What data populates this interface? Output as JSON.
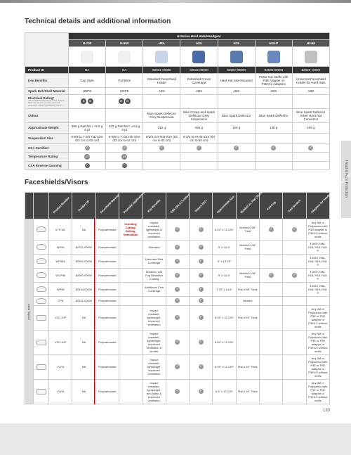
{
  "title": "Technical details and additional information",
  "title2": "Faceshields/Visors",
  "sidetab": "Head & Face Protection",
  "pagenum": "133",
  "t1": {
    "spanhdr": "H-Series Hard Hats/Headgear",
    "cols": [
      "H-700",
      "H-800",
      "H8A",
      "H10",
      "H18",
      "H18-P",
      "H24M"
    ],
    "colcolors": [
      "#f0f0f0",
      "#f0f0f0",
      "#c8d4e8",
      "#4a6ba8",
      "#5878b0",
      "#6a88c0",
      "#c0c0c0"
    ],
    "rows": [
      {
        "lbl": "Product ID",
        "vals": [
          "NA",
          "NA",
          "82501-00000",
          "82516-00000",
          "82502-00000",
          "82505-00000",
          "82520-10000"
        ],
        "dark": true
      },
      {
        "lbl": "Key Benefits",
        "vals": [
          "Cap Style",
          "Full Brim",
          "Standard Faceshield Holder",
          "Extended Crown Coverage",
          "Hard Hat Slot-Mounted",
          "Peltor Ear Muffs with P3E Adapter or P3EV/2 Adapters",
          "Universal Faceshield Holder for Hard Hats"
        ]
      },
      {
        "lbl": "Spark Def./Shell Material",
        "vals": [
          "HDPE",
          "HDPE",
          "ABS",
          "ABS",
          "ABS",
          "ABS",
          "ABS"
        ]
      },
      {
        "lbl": "Electrical Rating*",
        "sub": "(All uncited hard hats are rated class E; NOT intended to provide electrical protection unless specified by name.)",
        "vals": [
          "badge:E G",
          "badge:E G",
          "",
          "",
          "",
          "",
          ""
        ]
      },
      {
        "lbl": "Colour",
        "vals": [
          "",
          "",
          "Blue Spark Deflector Grey Suspension",
          "Blue Crown and Spark Deflector Grey Suspension",
          "Blue Spark Deflector",
          "Blue Spark Deflector",
          "Blue Spark Deflector Silver Hard Hat Connector"
        ]
      },
      {
        "lbl": "Approximate Weight",
        "vals": [
          "366 g Ratchet / +6.5 g 6 pt",
          "403 g Ratchet / +6.5 g 6 pt",
          "212 g",
          "255 g",
          "150 g",
          "130 g",
          "109 g"
        ]
      },
      {
        "lbl": "Suspension Size",
        "vals": [
          "6-5/8 to 7-3/4 Hat Size (53 cm to 62 cm)",
          "6-5/8 to 7-3/4 Hat Size (53 cm to 62 cm)",
          "6-3/4 to 8 Hat Size (54 cm to 64 cm)",
          "6-3/4 to 8 Hat Size (54 cm to 64 cm)",
          "",
          "",
          ""
        ]
      },
      {
        "lbl": "CSA Certified",
        "vals": [
          "chk",
          "chk",
          "chk",
          "chk",
          "chk",
          "chk",
          "chk"
        ]
      },
      {
        "lbl": "Temperature Rating",
        "vals": [
          "badge:LT",
          "badge:LT",
          "",
          "",
          "",
          "",
          ""
        ]
      },
      {
        "lbl": "CSA Reverse Donning",
        "vals": [
          "chkd",
          "chkd",
          "",
          "",
          "",
          "",
          ""
        ]
      }
    ]
  },
  "t2": {
    "rowgroup": "Clear Impact",
    "headers": [
      "Product Number",
      "Product ID",
      "Faceshield Material",
      "Potential Applications",
      "Key Benefits",
      "CSA Z94.3 Certified",
      "Impact Z87+",
      "Approximate Size",
      "Molded vs. Flat (Thickness)",
      "Anti-Fog",
      "Anti-Scratch",
      "Adapters for Headgear and Versa-Flo Systems"
    ],
    "rows": [
      {
        "pn": "V7F-WL",
        "pid": "NA",
        "mat": "Polycarbonate",
        "app": "Grinding, Cutting, Drilling, Demolition",
        "ben": "Impact resistant, lightweight & improved ventilation",
        "csa": "y",
        "z87": "y",
        "size": "8.25\" x 12.125\"",
        "thick": "Molded 0.08\" Thick",
        "af": "y",
        "as": "y",
        "adapt": "Any 3M or Polysonics with P3E adaptor or P3EV/2 without muffs"
      },
      {
        "pn": "WP96",
        "pid": "82701-00000",
        "mat": "Polycarbonate",
        "app": "",
        "ben": "Standard",
        "csa": "y",
        "z87": "y",
        "size": "9\" x 14.5\"",
        "thick": "Molded 0.08\" Thick",
        "af": "",
        "as": "",
        "adapt": "H24M, H8A, H18, H18, H18-P"
      },
      {
        "pn": "WP96X",
        "pid": "82582-00000",
        "mat": "Polycarbonate",
        "app": "",
        "ben": "Extended Side Coverage",
        "csa": "y",
        "z87": "y",
        "size": "9\" x 19.25\"",
        "thick": "",
        "af": "",
        "as": "",
        "adapt": "H24M, H8A, H18, H18, H18-P"
      },
      {
        "pn": "WCP96",
        "pid": "82600-00000",
        "mat": "Polycarbonate",
        "app": "",
        "ben": "Abrasion and Fog Resistant Coating",
        "csa": "y",
        "z87": "y",
        "size": "9\" x 14.5\"",
        "thick": "Molded 0.08\" Thick",
        "af": "y",
        "as": "y",
        "adapt": "H24M, H8A, H18, H18, H18-P"
      },
      {
        "pn": "WP98",
        "pid": "82543-00000",
        "mat": "Polycarbonate",
        "app": "",
        "ben": "Additional Chin Coverage",
        "csa": "y",
        "z87": "y",
        "size": "7.25\" x 14.5\"",
        "thick": "Flat 0.08\" Thick",
        "af": "",
        "as": "",
        "adapt": "H24M, H8A, H18, H18, H18-P"
      },
      {
        "pn": "CP8",
        "pid": "82542-00000",
        "mat": "Polycarbonate",
        "app": "",
        "ben": "",
        "csa": "y",
        "z87": "y",
        "size": "",
        "thick": "Molded",
        "af": "",
        "as": "",
        "adapt": ""
      },
      {
        "pn": "V2C-10P",
        "pid": "NA",
        "mat": "Polycarbonate",
        "app": "",
        "ben": "Impact resistant, lightweight, improved ventilation",
        "csa": "y",
        "z87": "y",
        "size": "8.25\" x 12.125\"",
        "thick": "Flat 0.04\" Thick",
        "af": "",
        "as": "",
        "adapt": "Any 3M or Polysonics with P3E or P5E adaptor or P3EV/2 without muffs"
      },
      {
        "pn": "V3C-10P",
        "pid": "NA",
        "mat": "Polycarbonate",
        "app": "",
        "ben": "Impact resistant, lightweight, improved ventilation & shorter",
        "csa": "y",
        "z87": "y",
        "size": "6.05\" x 12.125\"",
        "thick": "",
        "af": "",
        "as": "",
        "adapt": "Any 3M or Polysonics with P3E or P5E adaptor or P3EV/2 without muffs"
      },
      {
        "pn": "V2C6",
        "pid": "NA",
        "mat": "Polycarbonate",
        "app": "",
        "ben": "Impact resistant, lightweight, improved ventilation",
        "csa": "y",
        "z87": "y",
        "size": "8.25\" x 12.130\"",
        "thick": "Flat 0.04\" Thick",
        "af": "",
        "as": "",
        "adapt": "Any 3M or Polysonics with P3E or P5E adaptor or P3EV/2 without muffs"
      },
      {
        "pn": "V3C6",
        "pid": "NA",
        "mat": "Polycarbonate",
        "app": "",
        "ben": "Impact resistant, lightweight, anti-static & improved ventilation",
        "csa": "y",
        "z87": "y",
        "size": "5.5\" x 12.125\"",
        "thick": "Flat 0.04\" Thick",
        "af": "",
        "as": "",
        "adapt": "Any 3M or Polysonics with P3E or P5E adaptor or P3EV/2 without muffs"
      }
    ]
  }
}
